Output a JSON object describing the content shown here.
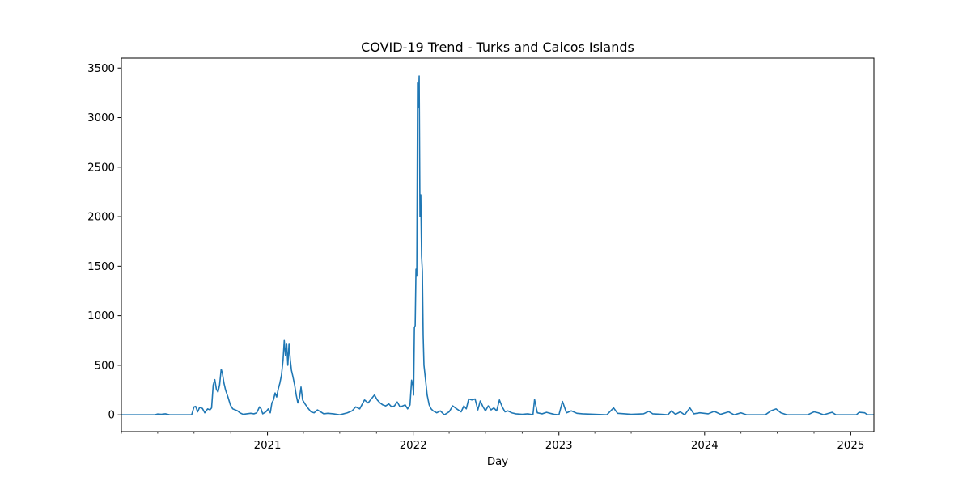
{
  "chart_data": {
    "type": "line",
    "title": "COVID-19 Trend - Turks and Caicos Islands",
    "xlabel": "Day",
    "ylabel": "",
    "x_range": [
      "2020-01-01",
      "2025-02-28"
    ],
    "ylim": [
      -170,
      3600
    ],
    "y_ticks": [
      0,
      500,
      1000,
      1500,
      2000,
      2500,
      3000,
      3500
    ],
    "x_ticks": [
      {
        "date": "2021-01-01",
        "label": "2021"
      },
      {
        "date": "2022-01-01",
        "label": "2022"
      },
      {
        "date": "2023-01-01",
        "label": "2023"
      },
      {
        "date": "2024-01-01",
        "label": "2024"
      },
      {
        "date": "2025-01-01",
        "label": "2025"
      }
    ],
    "x_minor_ticks": [
      "2020-01-01",
      "2020-04-01",
      "2020-07-01",
      "2020-10-01",
      "2021-04-01",
      "2021-07-01",
      "2021-10-01",
      "2022-04-01",
      "2022-07-01",
      "2022-10-01",
      "2023-04-01",
      "2023-07-01",
      "2023-10-01",
      "2024-04-01",
      "2024-07-01",
      "2024-10-01"
    ],
    "grid": false,
    "legend": "none",
    "series": [
      {
        "color": "#1f77b4",
        "points": [
          [
            "2020-01-01",
            0
          ],
          [
            "2020-03-25",
            0
          ],
          [
            "2020-04-01",
            8
          ],
          [
            "2020-04-10",
            5
          ],
          [
            "2020-04-20",
            10
          ],
          [
            "2020-05-01",
            0
          ],
          [
            "2020-06-25",
            0
          ],
          [
            "2020-07-01",
            80
          ],
          [
            "2020-07-05",
            85
          ],
          [
            "2020-07-10",
            30
          ],
          [
            "2020-07-15",
            75
          ],
          [
            "2020-07-22",
            65
          ],
          [
            "2020-07-28",
            20
          ],
          [
            "2020-08-04",
            60
          ],
          [
            "2020-08-10",
            50
          ],
          [
            "2020-08-14",
            70
          ],
          [
            "2020-08-18",
            300
          ],
          [
            "2020-08-22",
            355
          ],
          [
            "2020-08-26",
            260
          ],
          [
            "2020-08-30",
            230
          ],
          [
            "2020-09-03",
            300
          ],
          [
            "2020-09-07",
            460
          ],
          [
            "2020-09-10",
            420
          ],
          [
            "2020-09-14",
            320
          ],
          [
            "2020-09-18",
            250
          ],
          [
            "2020-09-24",
            180
          ],
          [
            "2020-09-30",
            100
          ],
          [
            "2020-10-06",
            60
          ],
          [
            "2020-10-12",
            50
          ],
          [
            "2020-10-18",
            40
          ],
          [
            "2020-10-24",
            20
          ],
          [
            "2020-11-01",
            5
          ],
          [
            "2020-11-10",
            10
          ],
          [
            "2020-11-20",
            15
          ],
          [
            "2020-11-28",
            10
          ],
          [
            "2020-12-05",
            20
          ],
          [
            "2020-12-12",
            80
          ],
          [
            "2020-12-16",
            60
          ],
          [
            "2020-12-20",
            10
          ],
          [
            "2020-12-28",
            30
          ],
          [
            "2021-01-03",
            60
          ],
          [
            "2021-01-08",
            20
          ],
          [
            "2021-01-12",
            120
          ],
          [
            "2021-01-16",
            150
          ],
          [
            "2021-01-20",
            220
          ],
          [
            "2021-01-24",
            180
          ],
          [
            "2021-01-28",
            260
          ],
          [
            "2021-02-01",
            320
          ],
          [
            "2021-02-05",
            400
          ],
          [
            "2021-02-09",
            550
          ],
          [
            "2021-02-12",
            750
          ],
          [
            "2021-02-15",
            600
          ],
          [
            "2021-02-18",
            720
          ],
          [
            "2021-02-21",
            500
          ],
          [
            "2021-02-24",
            720
          ],
          [
            "2021-02-27",
            560
          ],
          [
            "2021-03-02",
            450
          ],
          [
            "2021-03-06",
            380
          ],
          [
            "2021-03-10",
            300
          ],
          [
            "2021-03-14",
            200
          ],
          [
            "2021-03-18",
            120
          ],
          [
            "2021-03-22",
            170
          ],
          [
            "2021-03-26",
            280
          ],
          [
            "2021-03-30",
            150
          ],
          [
            "2021-04-05",
            110
          ],
          [
            "2021-04-12",
            70
          ],
          [
            "2021-04-20",
            30
          ],
          [
            "2021-04-28",
            20
          ],
          [
            "2021-05-06",
            50
          ],
          [
            "2021-05-14",
            30
          ],
          [
            "2021-05-22",
            10
          ],
          [
            "2021-06-01",
            15
          ],
          [
            "2021-06-15",
            10
          ],
          [
            "2021-07-01",
            0
          ],
          [
            "2021-07-20",
            20
          ],
          [
            "2021-08-01",
            40
          ],
          [
            "2021-08-10",
            80
          ],
          [
            "2021-08-20",
            60
          ],
          [
            "2021-09-01",
            150
          ],
          [
            "2021-09-10",
            120
          ],
          [
            "2021-09-18",
            160
          ],
          [
            "2021-09-26",
            200
          ],
          [
            "2021-10-03",
            150
          ],
          [
            "2021-10-10",
            120
          ],
          [
            "2021-10-17",
            100
          ],
          [
            "2021-10-24",
            90
          ],
          [
            "2021-11-01",
            110
          ],
          [
            "2021-11-08",
            80
          ],
          [
            "2021-11-15",
            90
          ],
          [
            "2021-11-22",
            130
          ],
          [
            "2021-11-29",
            80
          ],
          [
            "2021-12-06",
            90
          ],
          [
            "2021-12-12",
            100
          ],
          [
            "2021-12-18",
            60
          ],
          [
            "2021-12-24",
            100
          ],
          [
            "2021-12-28",
            350
          ],
          [
            "2021-12-31",
            300
          ],
          [
            "2022-01-02",
            200
          ],
          [
            "2022-01-04",
            880
          ],
          [
            "2022-01-06",
            900
          ],
          [
            "2022-01-08",
            1470
          ],
          [
            "2022-01-10",
            1400
          ],
          [
            "2022-01-12",
            3350
          ],
          [
            "2022-01-14",
            3100
          ],
          [
            "2022-01-16",
            3420
          ],
          [
            "2022-01-18",
            2000
          ],
          [
            "2022-01-20",
            2220
          ],
          [
            "2022-01-22",
            1600
          ],
          [
            "2022-01-24",
            1450
          ],
          [
            "2022-01-26",
            800
          ],
          [
            "2022-01-28",
            500
          ],
          [
            "2022-02-01",
            350
          ],
          [
            "2022-02-05",
            200
          ],
          [
            "2022-02-10",
            100
          ],
          [
            "2022-02-15",
            60
          ],
          [
            "2022-02-20",
            40
          ],
          [
            "2022-03-01",
            20
          ],
          [
            "2022-03-10",
            40
          ],
          [
            "2022-03-20",
            0
          ],
          [
            "2022-04-01",
            30
          ],
          [
            "2022-04-10",
            90
          ],
          [
            "2022-04-20",
            60
          ],
          [
            "2022-05-01",
            30
          ],
          [
            "2022-05-08",
            90
          ],
          [
            "2022-05-14",
            60
          ],
          [
            "2022-05-20",
            160
          ],
          [
            "2022-05-28",
            150
          ],
          [
            "2022-06-05",
            160
          ],
          [
            "2022-06-12",
            50
          ],
          [
            "2022-06-18",
            140
          ],
          [
            "2022-06-25",
            80
          ],
          [
            "2022-07-01",
            40
          ],
          [
            "2022-07-08",
            90
          ],
          [
            "2022-07-15",
            50
          ],
          [
            "2022-07-22",
            70
          ],
          [
            "2022-07-29",
            40
          ],
          [
            "2022-08-05",
            150
          ],
          [
            "2022-08-12",
            80
          ],
          [
            "2022-08-19",
            30
          ],
          [
            "2022-08-26",
            40
          ],
          [
            "2022-09-05",
            20
          ],
          [
            "2022-09-15",
            10
          ],
          [
            "2022-10-01",
            5
          ],
          [
            "2022-10-15",
            10
          ],
          [
            "2022-10-28",
            0
          ],
          [
            "2022-11-01",
            155
          ],
          [
            "2022-11-08",
            20
          ],
          [
            "2022-11-20",
            10
          ],
          [
            "2022-12-01",
            25
          ],
          [
            "2022-12-10",
            15
          ],
          [
            "2022-12-20",
            5
          ],
          [
            "2023-01-01",
            0
          ],
          [
            "2023-01-10",
            135
          ],
          [
            "2023-01-20",
            20
          ],
          [
            "2023-02-01",
            40
          ],
          [
            "2023-02-15",
            15
          ],
          [
            "2023-03-01",
            10
          ],
          [
            "2023-04-01",
            5
          ],
          [
            "2023-05-01",
            0
          ],
          [
            "2023-05-18",
            70
          ],
          [
            "2023-05-28",
            15
          ],
          [
            "2023-06-15",
            10
          ],
          [
            "2023-07-01",
            5
          ],
          [
            "2023-08-01",
            10
          ],
          [
            "2023-08-14",
            35
          ],
          [
            "2023-08-24",
            10
          ],
          [
            "2023-09-15",
            5
          ],
          [
            "2023-10-01",
            0
          ],
          [
            "2023-10-10",
            40
          ],
          [
            "2023-10-20",
            5
          ],
          [
            "2023-11-01",
            30
          ],
          [
            "2023-11-12",
            0
          ],
          [
            "2023-11-25",
            70
          ],
          [
            "2023-12-05",
            10
          ],
          [
            "2023-12-20",
            20
          ],
          [
            "2024-01-10",
            10
          ],
          [
            "2024-01-25",
            35
          ],
          [
            "2024-02-10",
            5
          ],
          [
            "2024-03-01",
            30
          ],
          [
            "2024-03-15",
            0
          ],
          [
            "2024-04-01",
            20
          ],
          [
            "2024-04-15",
            0
          ],
          [
            "2024-06-01",
            0
          ],
          [
            "2024-06-15",
            40
          ],
          [
            "2024-06-28",
            60
          ],
          [
            "2024-07-10",
            20
          ],
          [
            "2024-07-25",
            0
          ],
          [
            "2024-09-15",
            0
          ],
          [
            "2024-10-01",
            30
          ],
          [
            "2024-10-12",
            20
          ],
          [
            "2024-10-25",
            0
          ],
          [
            "2024-11-15",
            25
          ],
          [
            "2024-11-25",
            0
          ],
          [
            "2025-01-15",
            0
          ],
          [
            "2025-01-22",
            25
          ],
          [
            "2025-02-05",
            20
          ],
          [
            "2025-02-12",
            0
          ],
          [
            "2025-02-28",
            0
          ]
        ]
      }
    ]
  }
}
